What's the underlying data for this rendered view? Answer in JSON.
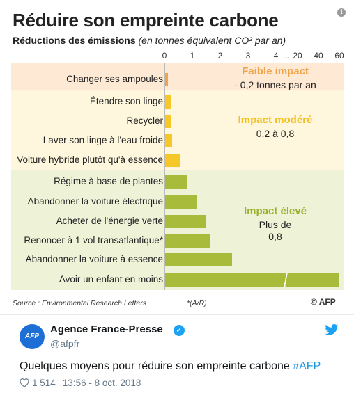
{
  "infographic": {
    "title": "Réduire son empreinte carbone",
    "subtitle_bold": "Réductions des émissions",
    "subtitle_italic": "(en tonnes équivalent CO² par an)",
    "axis_ticks": [
      "0",
      "1",
      "2",
      "3",
      "4",
      "...",
      "20",
      "40",
      "60"
    ],
    "rows": [
      {
        "label": "Changer ses ampoules",
        "category": "low",
        "value": 0.1
      },
      {
        "label": "Étendre son linge",
        "category": "mod",
        "value": 0.21
      },
      {
        "label": "Recycler",
        "category": "mod",
        "value": 0.21
      },
      {
        "label": "Laver son linge à l'eau froide",
        "category": "mod",
        "value": 0.25
      },
      {
        "label": "Voiture hybride plutôt qu'à essence",
        "category": "mod",
        "value": 0.52
      },
      {
        "label": "Régime à base de plantes",
        "category": "high",
        "value": 0.8
      },
      {
        "label": "Abandonner la voiture électrique",
        "category": "high",
        "value": 1.15
      },
      {
        "label": "Acheter de l'énergie verte",
        "category": "high",
        "value": 1.47
      },
      {
        "label": "Renoncer à 1 vol transatlantique*",
        "category": "high",
        "value": 1.6
      },
      {
        "label": "Abandonner la voiture à essence",
        "category": "high",
        "value": 2.4
      },
      {
        "label": "Avoir un enfant en moins",
        "category": "high",
        "value": 58.6
      }
    ],
    "categories": {
      "low": {
        "title": "Faible impact",
        "desc": [
          "- 0,2 tonnes par an"
        ],
        "color": "#f0a34a"
      },
      "mod": {
        "title": "Impact modéré",
        "desc": [
          "0,2 à 0,8"
        ],
        "color": "#f6c728"
      },
      "high": {
        "title": "Impact élevé",
        "desc": [
          "Plus de",
          "0,8"
        ],
        "color": "#a8bb3b"
      }
    },
    "source": "Source : Environmental Research Letters",
    "note": "*(A/R)",
    "credit": "© AFP"
  },
  "tweet": {
    "avatar_text": "AFP",
    "author": "Agence France-Presse",
    "handle": "@afpfr",
    "text": "Quelques moyens pour réduire son empreinte carbone ",
    "hashtag": "#AFP",
    "likes": "1 514",
    "time": "13:56 - 8 oct. 2018"
  },
  "chart_data": {
    "type": "bar",
    "orientation": "horizontal",
    "categories": [
      "Changer ses ampoules",
      "Étendre son linge",
      "Recycler",
      "Laver son linge à l'eau froide",
      "Voiture hybride plutôt qu'à essence",
      "Régime à base de plantes",
      "Abandonner la voiture électrique",
      "Acheter de l'énergie verte",
      "Renoncer à 1 vol transatlantique*",
      "Abandonner la voiture à essence",
      "Avoir un enfant en moins"
    ],
    "values": [
      0.1,
      0.21,
      0.21,
      0.25,
      0.52,
      0.8,
      1.15,
      1.47,
      1.6,
      2.4,
      58.6
    ],
    "title": "Réduire son empreinte carbone",
    "xlabel": "Réductions des émissions (en tonnes équivalent CO² par an)",
    "ylabel": "",
    "axis_break": "between 4 and 20",
    "grid": false
  }
}
